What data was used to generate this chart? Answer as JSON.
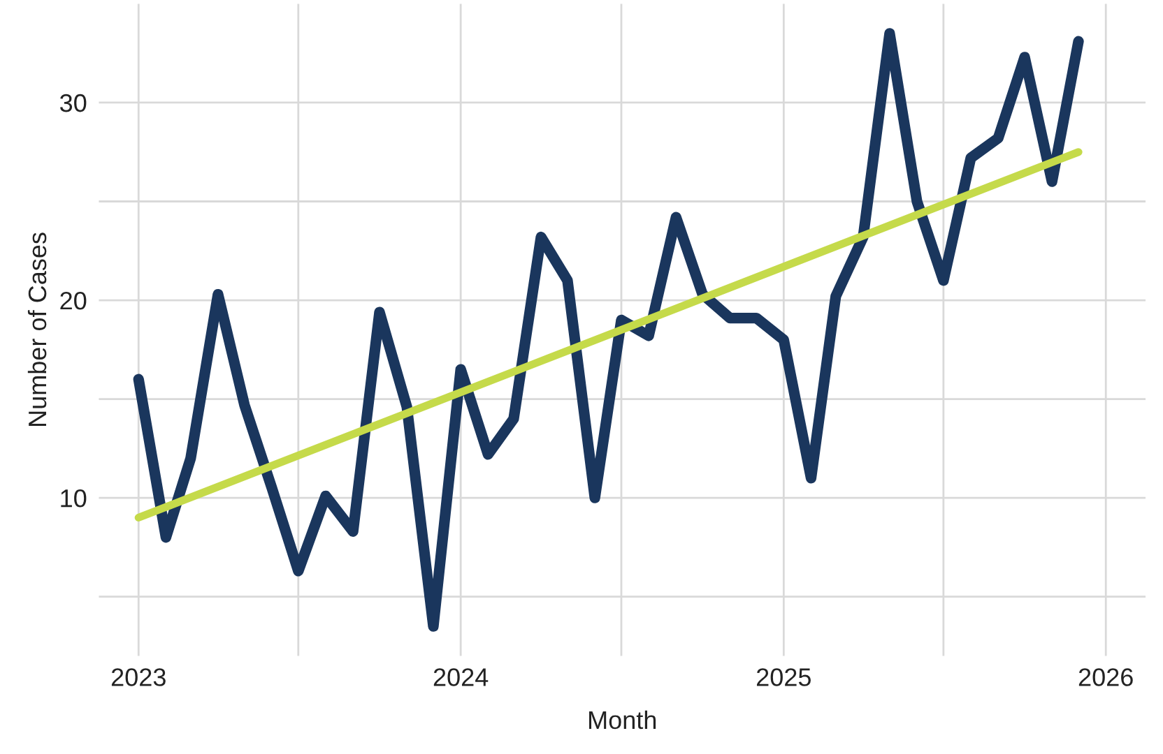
{
  "chart_data": {
    "type": "line",
    "xlabel": "Month",
    "ylabel": "Number of Cases",
    "x": [
      "2023-01",
      "2023-02",
      "2023-03",
      "2023-04",
      "2023-05",
      "2023-06",
      "2023-07",
      "2023-08",
      "2023-09",
      "2023-10",
      "2023-11",
      "2023-12",
      "2024-01",
      "2024-02",
      "2024-03",
      "2024-04",
      "2024-05",
      "2024-06",
      "2024-07",
      "2024-08",
      "2024-09",
      "2024-10",
      "2024-11",
      "2024-12",
      "2025-01",
      "2025-02",
      "2025-03",
      "2025-04",
      "2025-05",
      "2025-06",
      "2025-07",
      "2025-08",
      "2025-09",
      "2025-10",
      "2025-11",
      "2025-12"
    ],
    "series": [
      {
        "color": "#1a365d",
        "values": [
          16,
          8,
          12,
          20.3,
          14.7,
          10.5,
          6.3,
          10.1,
          8.3,
          19.4,
          14.6,
          3.5,
          16.5,
          12.2,
          14,
          23.2,
          21,
          10,
          19,
          18.2,
          24.2,
          20.3,
          19.1,
          19.1,
          18,
          11,
          20.2,
          23.2,
          33.5,
          25,
          21,
          27.2,
          28.2,
          32.3,
          26,
          33.1
        ]
      },
      {
        "type": "line",
        "color": "#c5da4a",
        "x": [
          "2023-01",
          "2025-12"
        ],
        "values": [
          9,
          27.5
        ]
      }
    ],
    "xlim": [
      "2022-11-17",
      "2026-02-15"
    ],
    "xticks": [
      {
        "value": "2023",
        "label": "2023"
      },
      {
        "value": "2023-07",
        "label": null
      },
      {
        "value": "2024",
        "label": "2024"
      },
      {
        "value": "2024-07",
        "label": null
      },
      {
        "value": "2025",
        "label": "2025"
      },
      {
        "value": "2025-07",
        "label": null
      },
      {
        "value": "2026",
        "label": "2026"
      }
    ],
    "ylim": [
      2,
      35
    ],
    "yticks": [
      {
        "value": 5,
        "label": null
      },
      10,
      {
        "value": 15,
        "label": null
      },
      20,
      {
        "value": 25,
        "label": null
      },
      30
    ],
    "grid": true,
    "marker": "none",
    "line_style": "solid"
  }
}
